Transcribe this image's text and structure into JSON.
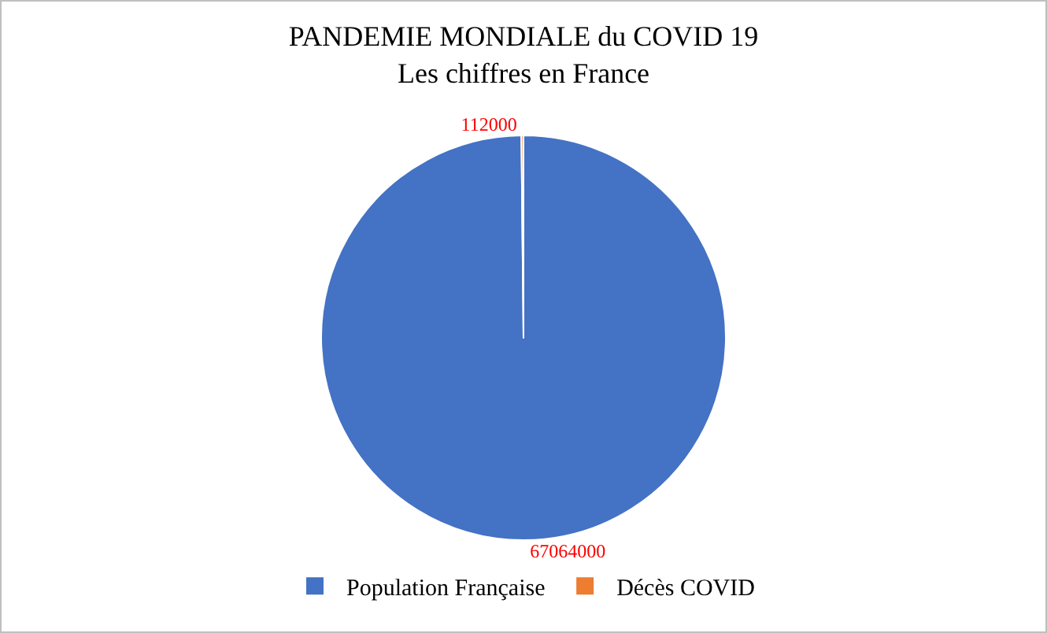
{
  "chart_data": {
    "type": "pie",
    "title": "PANDEMIE MONDIALE du COVID 19\nLes chiffres en France",
    "categories": [
      "Population Française",
      "Décès COVID"
    ],
    "values": [
      67064000,
      112000
    ],
    "colors": [
      "#4472c4",
      "#ed7d31"
    ],
    "data_labels": true,
    "legend": "bottom"
  }
}
